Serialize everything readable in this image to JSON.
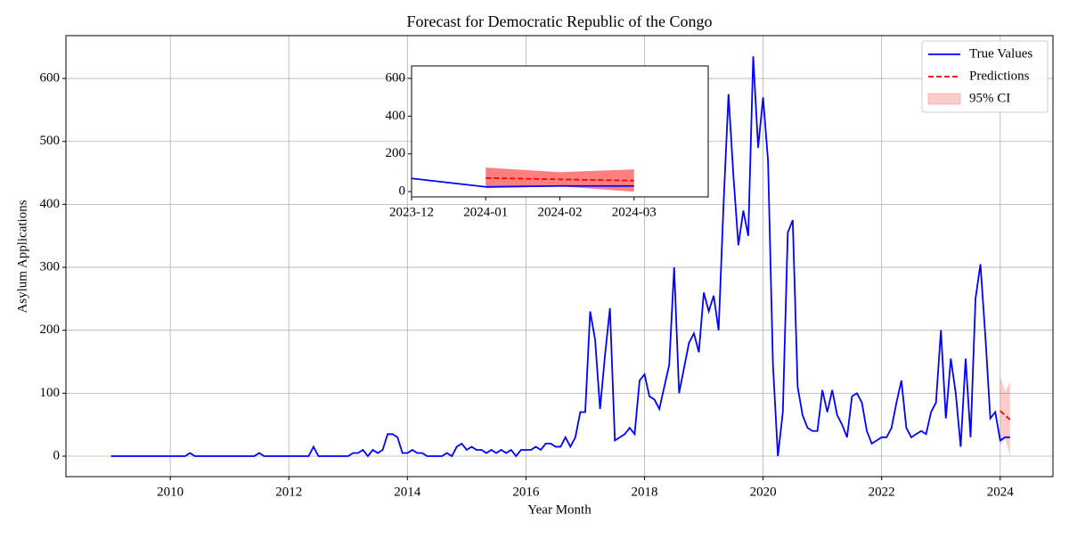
{
  "chart_data": {
    "type": "line",
    "title": "Forecast for Democratic Republic of the Congo",
    "x_label": "Year Month",
    "y_label": "Asylum Applications",
    "xlim": [
      2008.24,
      2024.89
    ],
    "xticks": [
      2010,
      2012,
      2014,
      2016,
      2018,
      2020,
      2022,
      2024
    ],
    "ylim": [
      -32.5,
      668
    ],
    "yticks": [
      0,
      100,
      200,
      300,
      400,
      500,
      600
    ],
    "grid": true,
    "legend": "upper right",
    "series": [
      {
        "name": "True Values",
        "color": "#0000ff",
        "dashed": false,
        "x": [
          "2009-01",
          "2009-02",
          "2009-03",
          "2009-04",
          "2009-05",
          "2009-06",
          "2009-07",
          "2009-08",
          "2009-09",
          "2009-10",
          "2009-11",
          "2009-12",
          "2010-01",
          "2010-02",
          "2010-03",
          "2010-04",
          "2010-05",
          "2010-06",
          "2010-07",
          "2010-08",
          "2010-09",
          "2010-10",
          "2010-11",
          "2010-12",
          "2011-01",
          "2011-02",
          "2011-03",
          "2011-04",
          "2011-05",
          "2011-06",
          "2011-07",
          "2011-08",
          "2011-09",
          "2011-10",
          "2011-11",
          "2011-12",
          "2012-01",
          "2012-02",
          "2012-03",
          "2012-04",
          "2012-05",
          "2012-06",
          "2012-07",
          "2012-08",
          "2012-09",
          "2012-10",
          "2012-11",
          "2012-12",
          "2013-01",
          "2013-02",
          "2013-03",
          "2013-04",
          "2013-05",
          "2013-06",
          "2013-07",
          "2013-08",
          "2013-09",
          "2013-10",
          "2013-11",
          "2013-12",
          "2014-01",
          "2014-02",
          "2014-03",
          "2014-04",
          "2014-05",
          "2014-06",
          "2014-07",
          "2014-08",
          "2014-09",
          "2014-10",
          "2014-11",
          "2014-12",
          "2015-01",
          "2015-02",
          "2015-03",
          "2015-04",
          "2015-05",
          "2015-06",
          "2015-07",
          "2015-08",
          "2015-09",
          "2015-10",
          "2015-11",
          "2015-12",
          "2016-01",
          "2016-02",
          "2016-03",
          "2016-04",
          "2016-05",
          "2016-06",
          "2016-07",
          "2016-08",
          "2016-09",
          "2016-10",
          "2016-11",
          "2016-12",
          "2017-01",
          "2017-02",
          "2017-03",
          "2017-04",
          "2017-05",
          "2017-06",
          "2017-07",
          "2017-08",
          "2017-09",
          "2017-10",
          "2017-11",
          "2017-12",
          "2018-01",
          "2018-02",
          "2018-03",
          "2018-04",
          "2018-05",
          "2018-06",
          "2018-07",
          "2018-08",
          "2018-09",
          "2018-10",
          "2018-11",
          "2018-12",
          "2019-01",
          "2019-02",
          "2019-03",
          "2019-04",
          "2019-05",
          "2019-06",
          "2019-07",
          "2019-08",
          "2019-09",
          "2019-10",
          "2019-11",
          "2019-12",
          "2020-01",
          "2020-02",
          "2020-03",
          "2020-04",
          "2020-05",
          "2020-06",
          "2020-07",
          "2020-08",
          "2020-09",
          "2020-10",
          "2020-11",
          "2020-12",
          "2021-01",
          "2021-02",
          "2021-03",
          "2021-04",
          "2021-05",
          "2021-06",
          "2021-07",
          "2021-08",
          "2021-09",
          "2021-10",
          "2021-11",
          "2021-12",
          "2022-01",
          "2022-02",
          "2022-03",
          "2022-04",
          "2022-05",
          "2022-06",
          "2022-07",
          "2022-08",
          "2022-09",
          "2022-10",
          "2022-11",
          "2022-12",
          "2023-01",
          "2023-02",
          "2023-03",
          "2023-04",
          "2023-05",
          "2023-06",
          "2023-07",
          "2023-08",
          "2023-09",
          "2023-10",
          "2023-11",
          "2023-12",
          "2024-01",
          "2024-02",
          "2024-03"
        ],
        "values": [
          0,
          0,
          0,
          0,
          0,
          0,
          0,
          0,
          0,
          0,
          0,
          0,
          0,
          0,
          0,
          0,
          5,
          0,
          0,
          0,
          0,
          0,
          0,
          0,
          0,
          0,
          0,
          0,
          0,
          0,
          5,
          0,
          0,
          0,
          0,
          0,
          0,
          0,
          0,
          0,
          0,
          15,
          0,
          0,
          0,
          0,
          0,
          0,
          0,
          5,
          5,
          10,
          0,
          10,
          5,
          10,
          35,
          35,
          30,
          5,
          5,
          10,
          5,
          5,
          0,
          0,
          0,
          0,
          5,
          0,
          15,
          20,
          10,
          15,
          10,
          10,
          5,
          10,
          5,
          10,
          5,
          10,
          0,
          10,
          10,
          10,
          15,
          10,
          20,
          20,
          15,
          15,
          30,
          15,
          30,
          70,
          70,
          230,
          185,
          75,
          160,
          235,
          25,
          30,
          35,
          45,
          35,
          120,
          130,
          95,
          90,
          75,
          110,
          145,
          300,
          100,
          140,
          180,
          195,
          165,
          260,
          230,
          255,
          200,
          400,
          575,
          445,
          335,
          390,
          350,
          635,
          490,
          570,
          470,
          145,
          0,
          70,
          355,
          375,
          110,
          65,
          45,
          40,
          40,
          105,
          70,
          105,
          65,
          50,
          30,
          95,
          100,
          85,
          40,
          20,
          25,
          30,
          30,
          45,
          85,
          120,
          45,
          30,
          35,
          40,
          35,
          70,
          85,
          200,
          60,
          155,
          100,
          15,
          155,
          30,
          250,
          305,
          190,
          60,
          70,
          25,
          30,
          30
        ]
      },
      {
        "name": "Predictions",
        "color": "#ff0000",
        "dashed": true,
        "x": [
          "2024-01",
          "2024-02",
          "2024-03"
        ],
        "values": [
          72,
          65,
          58
        ]
      }
    ],
    "bands": [
      {
        "name": "95% CI",
        "color": "#ff0000",
        "alpha": 0.2,
        "x": [
          "2024-01",
          "2024-02",
          "2024-03"
        ],
        "lower": [
          18,
          28,
          0
        ],
        "upper": [
          127,
          103,
          118
        ]
      }
    ],
    "inset": {
      "xlim": [
        "2023-12",
        "2024-04"
      ],
      "xticks": [
        "2023-12",
        "2024-01",
        "2024-02",
        "2024-03"
      ],
      "ylim": [
        -28,
        666
      ],
      "yticks": [
        0,
        200,
        400,
        600
      ],
      "band_alpha": 0.5
    }
  }
}
